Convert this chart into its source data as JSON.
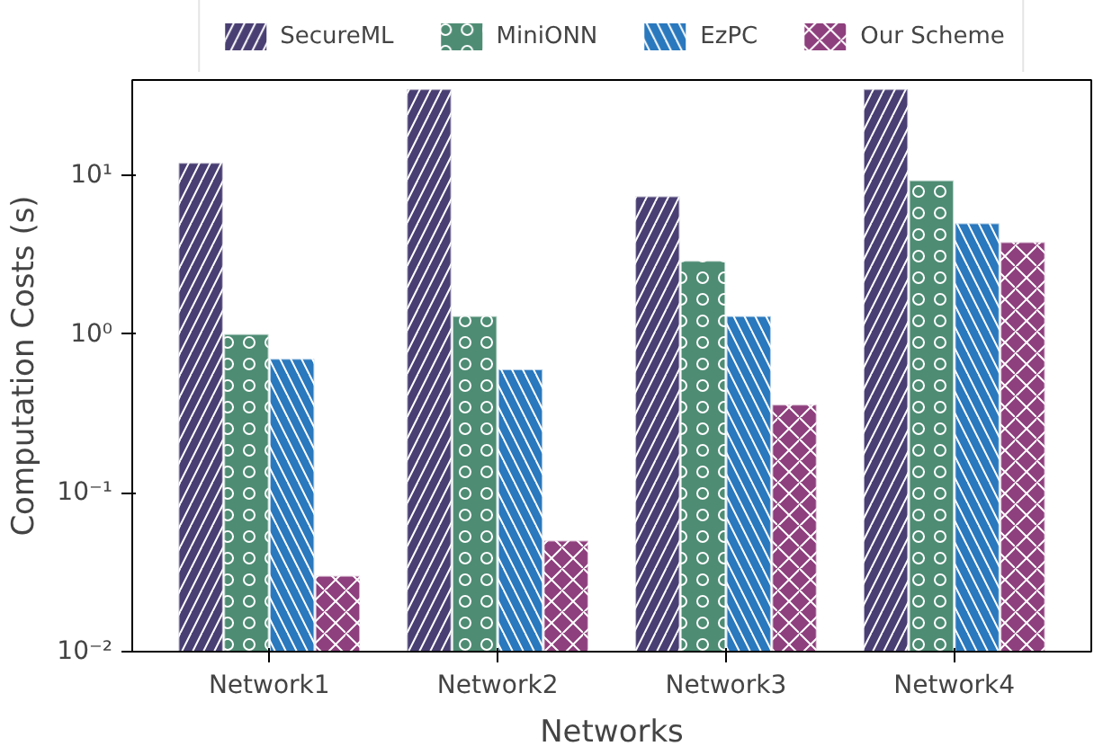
{
  "chart_data": {
    "type": "bar",
    "xlabel": "Networks",
    "ylabel": "Computation Costs (s)",
    "categories": [
      "Network1",
      "Network2",
      "Network3",
      "Network4"
    ],
    "series": [
      {
        "name": "SecureML",
        "color": "#4a3f73",
        "values": [
          12,
          35,
          7.4,
          35
        ]
      },
      {
        "name": "MiniONN",
        "color": "#4e8c74",
        "values": [
          1.0,
          1.3,
          2.9,
          9.3
        ]
      },
      {
        "name": "EzPC",
        "color": "#2a78bd",
        "values": [
          0.7,
          0.6,
          1.3,
          5.0
        ]
      },
      {
        "name": "Our Scheme",
        "color": "#8e3f7d",
        "values": [
          0.03,
          0.05,
          0.36,
          3.8
        ]
      }
    ],
    "log": "y",
    "ylim": [
      0.01,
      40
    ],
    "yticks": [
      {
        "value": 0.01,
        "label": "10⁻²"
      },
      {
        "value": 0.1,
        "label": "10⁻¹"
      },
      {
        "value": 1,
        "label": "10⁰"
      },
      {
        "value": 10,
        "label": "10¹"
      }
    ],
    "legend": "top",
    "grid": false
  }
}
